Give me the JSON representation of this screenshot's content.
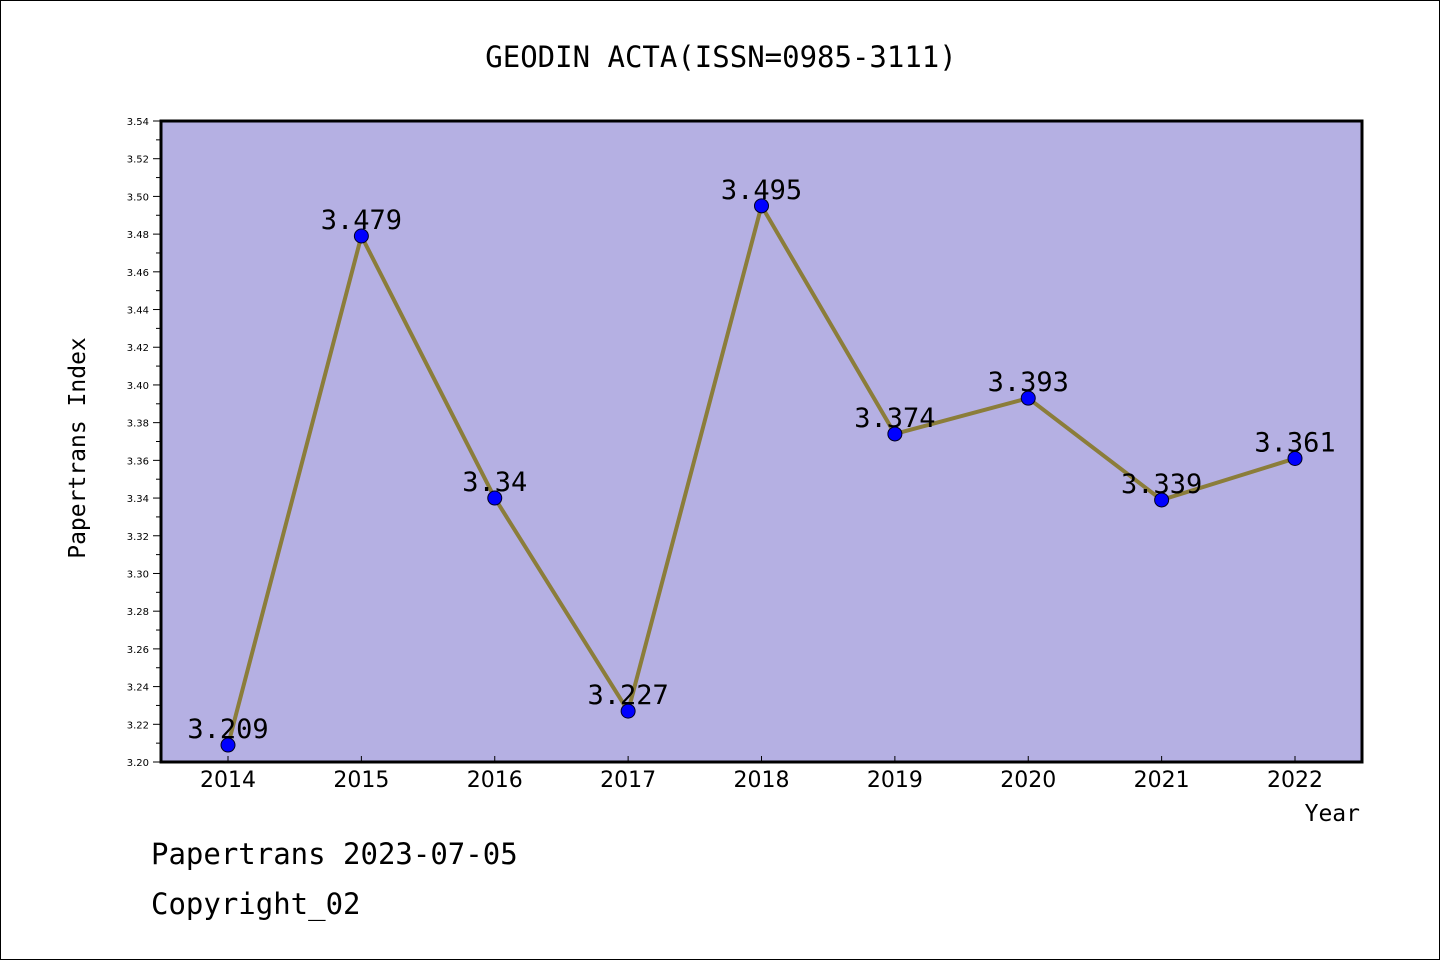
{
  "chart_data": {
    "type": "line",
    "title": "GEODIN ACTA(ISSN=0985-3111)",
    "xlabel": "Year",
    "ylabel": "Papertrans Index",
    "categories": [
      "2014",
      "2015",
      "2016",
      "2017",
      "2018",
      "2019",
      "2020",
      "2021",
      "2022"
    ],
    "values": [
      3.209,
      3.479,
      3.34,
      3.227,
      3.495,
      3.374,
      3.393,
      3.339,
      3.361
    ],
    "data_labels": [
      "3.209",
      "3.479",
      "3.34",
      "3.227",
      "3.495",
      "3.374",
      "3.393",
      "3.339",
      "3.361"
    ],
    "ylim": [
      3.2,
      3.54
    ],
    "yticks": [
      "3.20",
      "3.22",
      "3.24",
      "3.26",
      "3.28",
      "3.30",
      "3.32",
      "3.34",
      "3.36",
      "3.38",
      "3.40",
      "3.42",
      "3.44",
      "3.46",
      "3.48",
      "3.50",
      "3.52",
      "3.54"
    ],
    "grid": false,
    "colors": {
      "plot_background": "#b5b0e3",
      "line": "#8b7d3a",
      "marker": "#0000ff"
    }
  },
  "footer": {
    "line1": "Papertrans 2023-07-05",
    "line2": "Copyright_02"
  }
}
